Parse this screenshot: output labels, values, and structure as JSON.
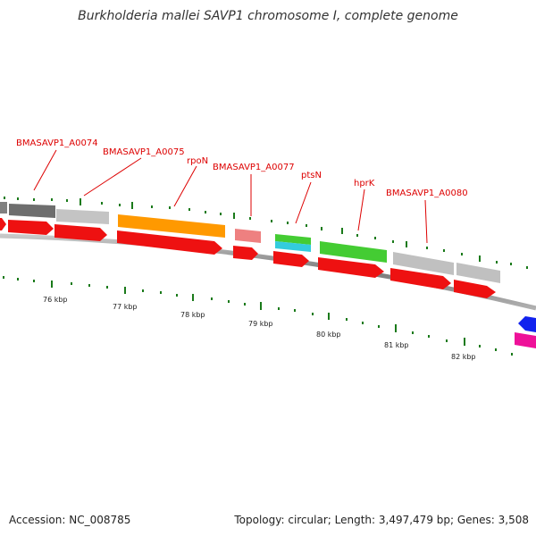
{
  "title": "Burkholderia mallei SAVP1 chromosome I, complete genome",
  "footer": {
    "accession": "Accession: NC_008785",
    "topology": "Topology: circular; Length: 3,497,479 bp; Genes: 3,508"
  },
  "gene_labels": [
    {
      "text": "BMASAVP1_A0074",
      "color": "#dd0000"
    },
    {
      "text": "BMASAVP1_A0075",
      "color": "#dd0000"
    },
    {
      "text": "rpoN",
      "color": "#dd0000"
    },
    {
      "text": "BMASAVP1_A0077",
      "color": "#dd0000"
    },
    {
      "text": "ptsN",
      "color": "#dd0000"
    },
    {
      "text": "hprK",
      "color": "#dd0000"
    },
    {
      "text": "BMASAVP1_A0080",
      "color": "#dd0000"
    }
  ],
  "scale_labels": [
    "76 kbp",
    "77 kbp",
    "78 kbp",
    "79 kbp",
    "80 kbp",
    "81 kbp",
    "82 kbp"
  ],
  "colors": {
    "backbone": "#8a8a8a",
    "tick": "#1a7a1a",
    "cds_red": "#ee1111",
    "gene_gray": "#c0c0c0",
    "gene_darkgray": "#707070",
    "gene_orange": "#ff9900",
    "gene_pink": "#ee8080",
    "gene_green": "#44cc33",
    "gene_cyan": "#33ccdd",
    "gene_blue": "#1122ee",
    "gene_magenta": "#ee1199",
    "label_red": "#dd0000"
  }
}
